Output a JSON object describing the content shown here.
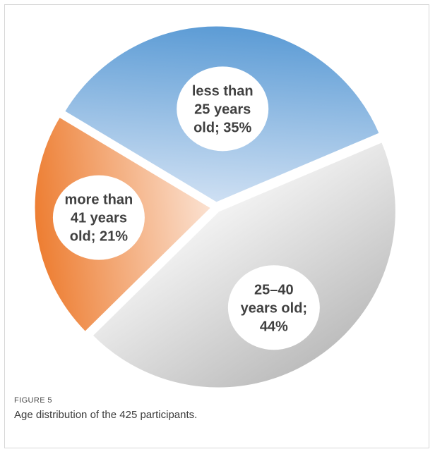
{
  "figure": {
    "label": "FIGURE 5",
    "caption": "Age distribution of the 425 participants."
  },
  "chart_data": {
    "type": "pie",
    "slices": [
      {
        "label_lines": [
          "less than",
          "25 years",
          "old; 35%"
        ],
        "value": 35,
        "color_light": "#cfe0f3",
        "color_dark": "#5b9bd5"
      },
      {
        "label_lines": [
          "25–40",
          "years old;",
          "44%"
        ],
        "value": 44,
        "color_light": "#f2f2f2",
        "color_dark": "#bdbdbd"
      },
      {
        "label_lines": [
          "more than",
          "41 years",
          "old; 21%"
        ],
        "value": 21,
        "color_light": "#fbe2d2",
        "color_dark": "#ed7d31"
      }
    ],
    "legend": "none"
  }
}
